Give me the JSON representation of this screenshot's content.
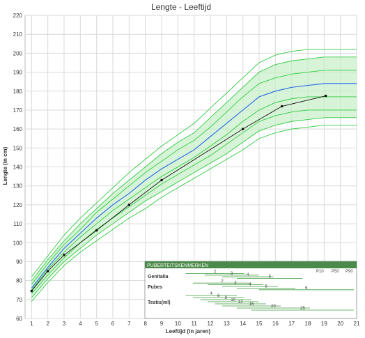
{
  "chart_data": {
    "type": "line",
    "title": "Lengte - Leeftijd",
    "xlabel": "Leeftijd (in jaren)",
    "ylabel": "Lengte (in cm)",
    "xlim": [
      0.6,
      21
    ],
    "ylim": [
      60,
      220
    ],
    "x_ticks": [
      1,
      2,
      3,
      4,
      5,
      6,
      7,
      8,
      9,
      10,
      11,
      12,
      13,
      14,
      15,
      16,
      17,
      18,
      19,
      20,
      21
    ],
    "y_ticks": [
      60,
      70,
      80,
      90,
      100,
      110,
      120,
      130,
      140,
      150,
      160,
      170,
      180,
      190,
      200,
      210,
      220
    ],
    "grid": true,
    "percentile_ages": [
      1,
      2,
      3,
      4,
      5,
      6,
      7,
      8,
      9,
      10,
      11,
      12,
      13,
      14,
      15,
      16,
      17,
      18,
      19,
      20,
      21
    ],
    "percentile_curves": [
      [
        69,
        79,
        88,
        95,
        101,
        107,
        113,
        118,
        124,
        129,
        134,
        139,
        144,
        149,
        155,
        158,
        160,
        161,
        162,
        162,
        162
      ],
      [
        71,
        81,
        90,
        97,
        104,
        110,
        116,
        122,
        127,
        132,
        137,
        142,
        147,
        153,
        159,
        162,
        164,
        165,
        166,
        166,
        166
      ],
      [
        73,
        83,
        92,
        100,
        107,
        113,
        119,
        125,
        131,
        136,
        141,
        146,
        152,
        158,
        164,
        167,
        169,
        170,
        170,
        170,
        170
      ],
      [
        75,
        86,
        95,
        103,
        110,
        117,
        123,
        129,
        135,
        140,
        145,
        151,
        157,
        164,
        170,
        174,
        176,
        177,
        177,
        177,
        177
      ],
      [
        76,
        87,
        97,
        105,
        113,
        120,
        126,
        133,
        139,
        144,
        149,
        156,
        163,
        170,
        177,
        180,
        182,
        183,
        184,
        184,
        184
      ],
      [
        78,
        89,
        99,
        107,
        116,
        123,
        130,
        137,
        143,
        149,
        154,
        161,
        169,
        177,
        184,
        187,
        189,
        190,
        191,
        191,
        191
      ],
      [
        80,
        91,
        101,
        110,
        118,
        126,
        133,
        140,
        147,
        153,
        158,
        166,
        174,
        182,
        190,
        194,
        196,
        197,
        198,
        198,
        198
      ],
      [
        82,
        93,
        104,
        113,
        121,
        129,
        137,
        144,
        151,
        157,
        163,
        171,
        179,
        187,
        195,
        199,
        201,
        202,
        202,
        202,
        202
      ]
    ],
    "median_index": 4,
    "band_range": [
      1,
      6
    ],
    "series": [
      {
        "x": [
          1,
          2,
          3,
          5,
          7,
          9,
          14,
          16.4,
          19.1
        ],
        "values": [
          74.5,
          85,
          93.5,
          106.5,
          120,
          133,
          160,
          172,
          177.5
        ]
      }
    ],
    "inset": {
      "title": "PUBERTEITSKENMERKEN",
      "percentile_labels": [
        "P10",
        "P50",
        "P90"
      ],
      "rows": [
        {
          "label": "Genitalia",
          "stages": [
            {
              "label": "2",
              "from": 9.5,
              "to": 13.5
            },
            {
              "label": "3",
              "from": 10.8,
              "to": 14.5
            },
            {
              "label": "4",
              "from": 12,
              "to": 15.5
            },
            {
              "label": "5",
              "from": 13,
              "to": 17.5
            }
          ]
        },
        {
          "label": "Pubes",
          "stages": [
            {
              "label": "2",
              "from": 10,
              "to": 14
            },
            {
              "label": "3",
              "from": 11,
              "to": 14.8
            },
            {
              "label": "4",
              "from": 12,
              "to": 15.8
            },
            {
              "label": "5",
              "from": 13,
              "to": 17
            },
            {
              "label": "6",
              "from": 14.5,
              "to": 21
            }
          ]
        },
        {
          "label": "Testis(ml)",
          "stages": [
            {
              "label": "4",
              "from": 9.5,
              "to": 13
            },
            {
              "label": "6",
              "from": 10,
              "to": 13.5
            },
            {
              "label": "8",
              "from": 10.5,
              "to": 14
            },
            {
              "label": "10",
              "from": 11,
              "to": 14.5
            },
            {
              "label": "12",
              "from": 11.5,
              "to": 15
            },
            {
              "label": "15",
              "from": 12,
              "to": 16
            },
            {
              "label": "20",
              "from": 13,
              "to": 18
            },
            {
              "label": "25",
              "from": 14,
              "to": 21
            }
          ]
        }
      ]
    }
  },
  "colors": {
    "percentile_line": "#2ecc40",
    "band_fill": "#c8f0c8",
    "median_line": "#2f6fe8",
    "patient_line": "#111111",
    "grid": "#d9d9d9",
    "inset_header": "#4a8a4a",
    "inset_bar": "#3a9a3a"
  }
}
